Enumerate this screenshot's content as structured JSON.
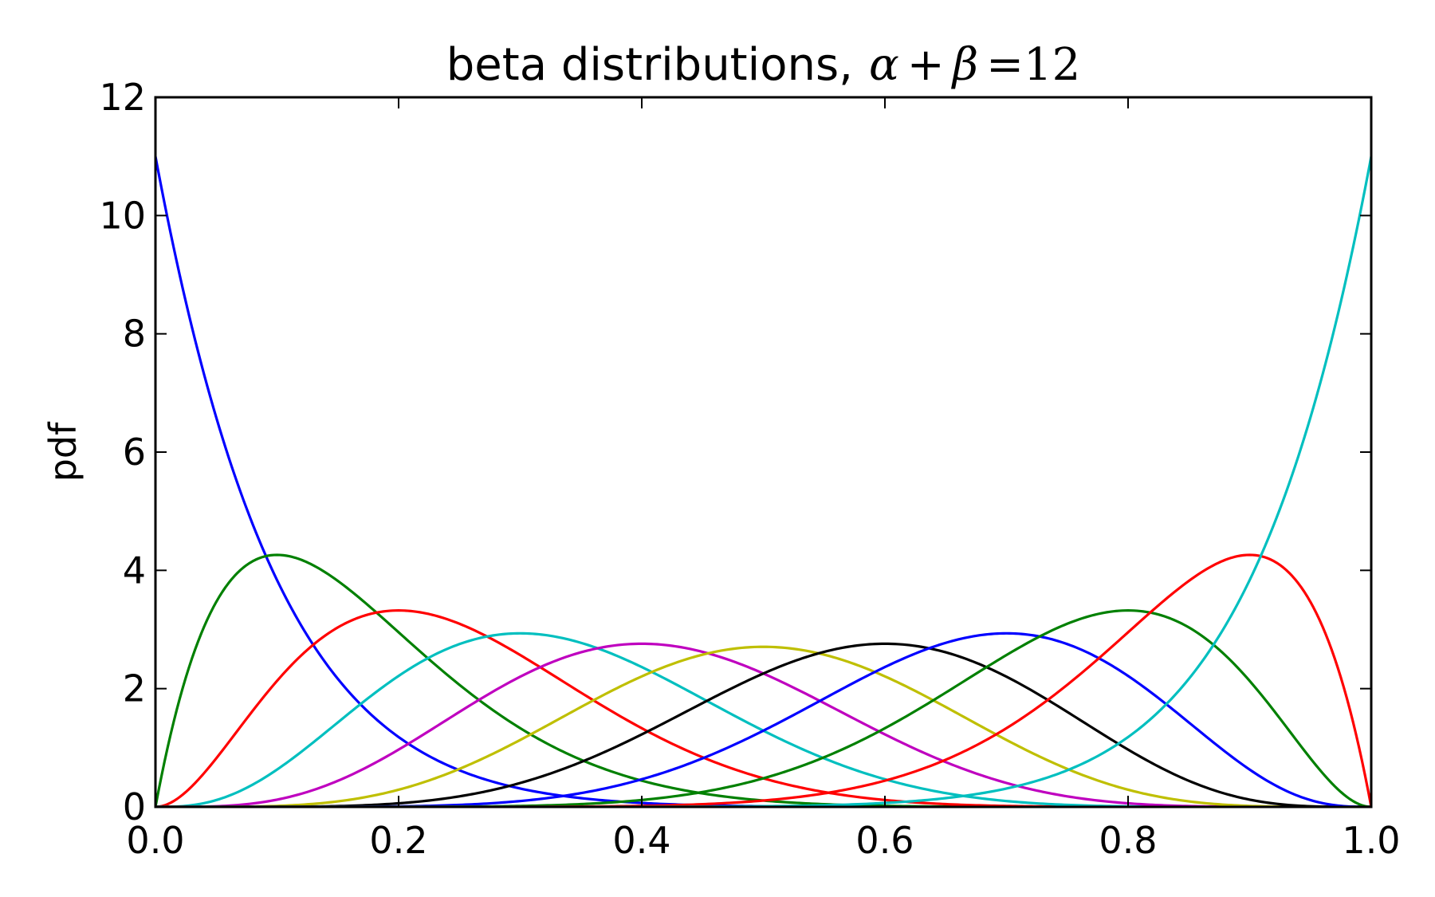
{
  "chart_data": {
    "type": "line",
    "title": "beta distributions,",
    "title_math": "α+β=12",
    "title_math_parts": [
      "α",
      "+",
      "β",
      "=12"
    ],
    "xlabel": "",
    "ylabel": "pdf",
    "xlim": [
      0.0,
      1.0
    ],
    "ylim": [
      0,
      12
    ],
    "x_ticks": [
      "0.0",
      "0.2",
      "0.4",
      "0.6",
      "0.8",
      "1.0"
    ],
    "x_tick_values": [
      0.0,
      0.2,
      0.4,
      0.6,
      0.8,
      1.0
    ],
    "y_ticks": [
      "0",
      "2",
      "4",
      "6",
      "8",
      "10",
      "12"
    ],
    "y_tick_values": [
      0,
      2,
      4,
      6,
      8,
      10,
      12
    ],
    "grid": false,
    "legend": "none",
    "series": [
      {
        "alpha": 1,
        "beta": 11,
        "color": "#0000ff"
      },
      {
        "alpha": 2,
        "beta": 10,
        "color": "#008000"
      },
      {
        "alpha": 3,
        "beta": 9,
        "color": "#ff0000"
      },
      {
        "alpha": 4,
        "beta": 8,
        "color": "#00bfbf"
      },
      {
        "alpha": 5,
        "beta": 7,
        "color": "#bf00bf"
      },
      {
        "alpha": 6,
        "beta": 6,
        "color": "#bfbf00"
      },
      {
        "alpha": 7,
        "beta": 5,
        "color": "#000000"
      },
      {
        "alpha": 8,
        "beta": 4,
        "color": "#0000ff"
      },
      {
        "alpha": 9,
        "beta": 3,
        "color": "#008000"
      },
      {
        "alpha": 10,
        "beta": 2,
        "color": "#ff0000"
      },
      {
        "alpha": 11,
        "beta": 1,
        "color": "#00bfbf"
      }
    ]
  }
}
